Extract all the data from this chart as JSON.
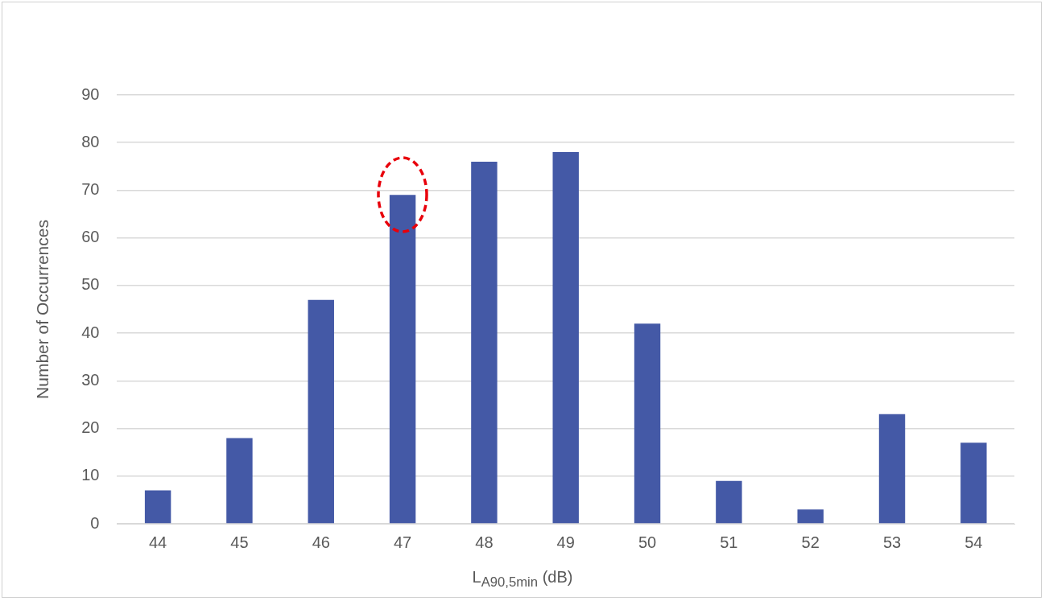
{
  "chart_data": {
    "type": "bar",
    "xlabel": "L$_{A90,5min}$ (dB)",
    "ylabel": "Number of Occurrences",
    "categories": [
      "44",
      "45",
      "46",
      "47",
      "48",
      "49",
      "50",
      "51",
      "52",
      "53",
      "54"
    ],
    "values": [
      7,
      18,
      47,
      69,
      76,
      78,
      42,
      9,
      3,
      23,
      17
    ],
    "color": "#4459a6",
    "ylim": [
      0,
      90
    ],
    "yticks": [
      0,
      10,
      20,
      30,
      40,
      50,
      60,
      70,
      80,
      90
    ],
    "grid": "y",
    "legend": false
  }
}
